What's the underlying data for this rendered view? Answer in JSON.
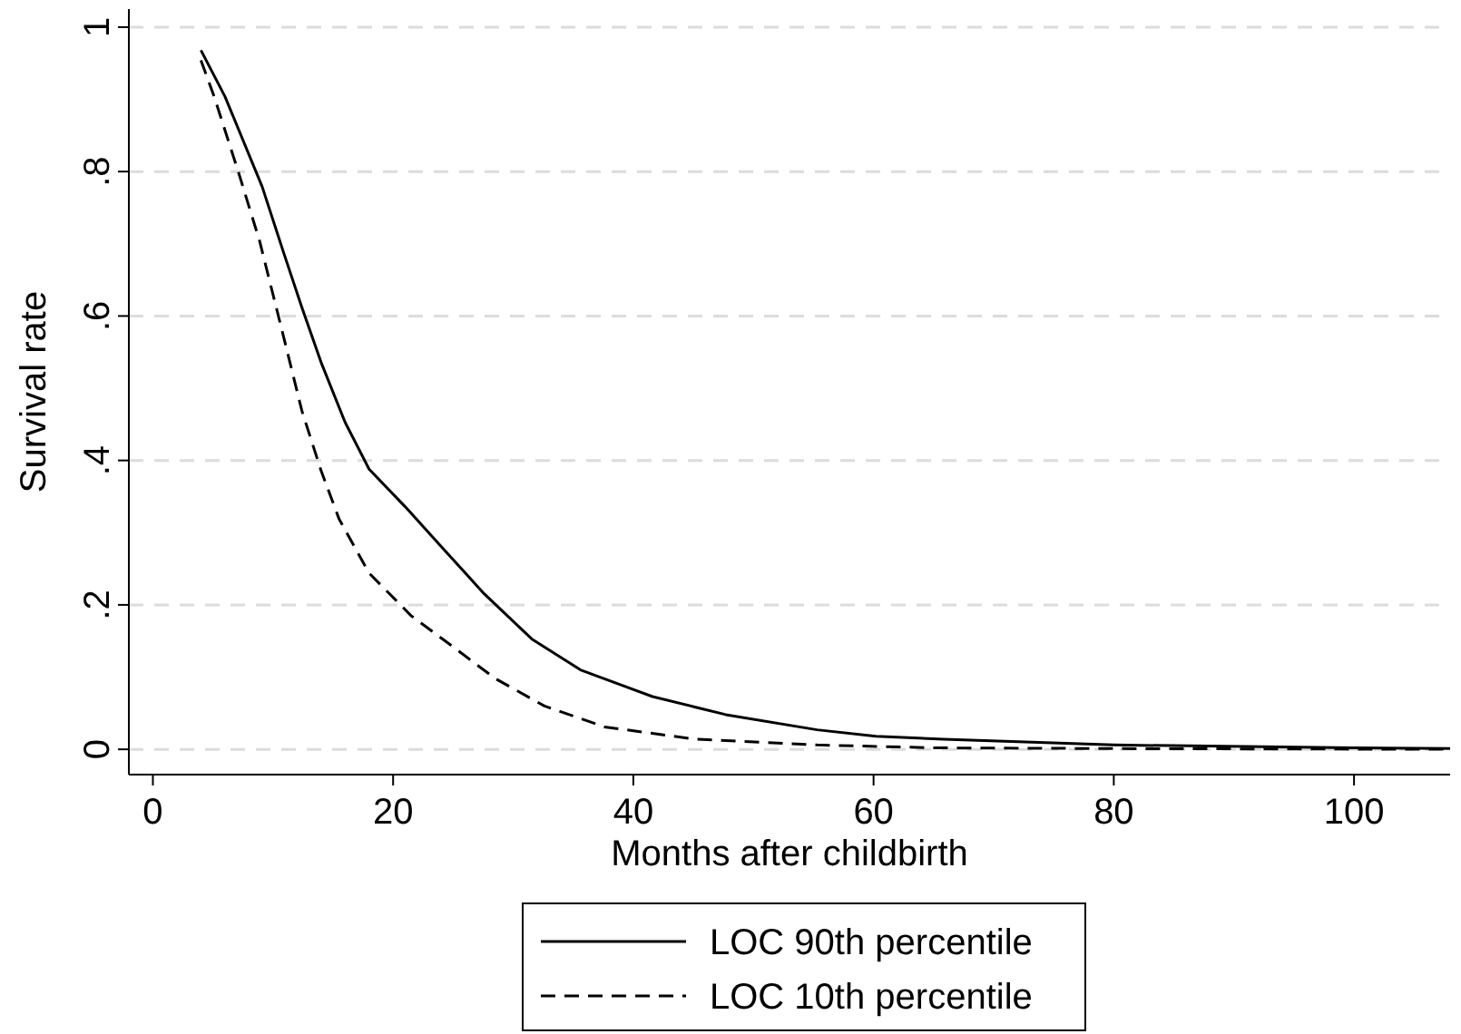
{
  "chart_data": {
    "type": "line",
    "xlabel": "Months after childbirth",
    "ylabel": "Survival rate",
    "xlim": [
      -2,
      108
    ],
    "xticks": [
      0,
      20,
      40,
      60,
      80,
      100
    ],
    "ylim": [
      -0.035,
      1.025
    ],
    "yticks": [
      0,
      {
        "value": 0.2,
        "label": ".2"
      },
      {
        "value": 0.4,
        "label": ".4"
      },
      {
        "value": 0.6,
        "label": ".6"
      },
      {
        "value": 0.8,
        "label": ".8"
      },
      1
    ],
    "grid": "y",
    "legend": "bottom",
    "marker": "none",
    "series": [
      {
        "name": "LOC 90th percentile",
        "color": "#000000",
        "line_style": "solid",
        "x": [
          4,
          6,
          9.1,
          10.9,
          12.4,
          14,
          16,
          18,
          21,
          24,
          27.6,
          31.6,
          35.6,
          41.6,
          47.7,
          55.3,
          60.2,
          65.8,
          80,
          100,
          108
        ],
        "values": [
          0.968,
          0.904,
          0.779,
          0.687,
          0.612,
          0.536,
          0.453,
          0.388,
          0.336,
          0.281,
          0.215,
          0.152,
          0.11,
          0.073,
          0.048,
          0.027,
          0.018,
          0.014,
          0.006,
          0.002,
          0.001
        ]
      },
      {
        "name": "LOC 10th percentile",
        "color": "#000000",
        "line_style": "dashed",
        "x": [
          4,
          5.1,
          7.2,
          8.9,
          10.9,
          12.4,
          14,
          15.5,
          18,
          21.5,
          24.5,
          28.5,
          32.6,
          37.6,
          45.2,
          55.3,
          65.3,
          80,
          108
        ],
        "values": [
          0.954,
          0.904,
          0.795,
          0.703,
          0.57,
          0.469,
          0.386,
          0.319,
          0.244,
          0.185,
          0.148,
          0.098,
          0.06,
          0.031,
          0.014,
          0.006,
          0.002,
          0.001,
          0
        ]
      }
    ]
  }
}
